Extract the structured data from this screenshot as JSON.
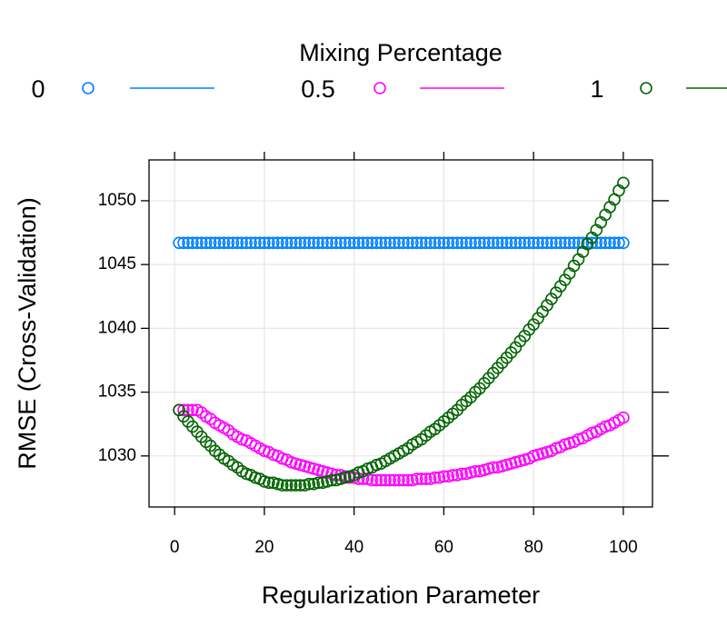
{
  "chart_data": {
    "type": "scatter",
    "legend_title": "Mixing Percentage",
    "xlabel": "Regularization Parameter",
    "ylabel": "RMSE (Cross-Validation)",
    "xlim": [
      -5.7,
      106.5
    ],
    "ylim": [
      1026.0,
      1053.2
    ],
    "xticks": [
      0,
      20,
      40,
      60,
      80,
      100
    ],
    "yticks": [
      1030,
      1035,
      1040,
      1045,
      1050
    ],
    "grid": true,
    "legend": "top",
    "x": [
      1,
      2,
      3,
      4,
      5,
      6,
      7,
      8,
      9,
      10,
      11,
      12,
      13,
      14,
      15,
      16,
      17,
      18,
      19,
      20,
      21,
      22,
      23,
      24,
      25,
      26,
      27,
      28,
      29,
      30,
      31,
      32,
      33,
      34,
      35,
      36,
      37,
      38,
      39,
      40,
      41,
      42,
      43,
      44,
      45,
      46,
      47,
      48,
      49,
      50,
      51,
      52,
      53,
      54,
      55,
      56,
      57,
      58,
      59,
      60,
      61,
      62,
      63,
      64,
      65,
      66,
      67,
      68,
      69,
      70,
      71,
      72,
      73,
      74,
      75,
      76,
      77,
      78,
      79,
      80,
      81,
      82,
      83,
      84,
      85,
      86,
      87,
      88,
      89,
      90,
      91,
      92,
      93,
      94,
      95,
      96,
      97,
      98,
      99,
      100
    ],
    "series": [
      {
        "name": "0",
        "color": "#0080ff",
        "values": [
          1046.7,
          1046.7,
          1046.7,
          1046.7,
          1046.7,
          1046.7,
          1046.7,
          1046.7,
          1046.7,
          1046.7,
          1046.7,
          1046.7,
          1046.7,
          1046.7,
          1046.7,
          1046.7,
          1046.7,
          1046.7,
          1046.7,
          1046.7,
          1046.7,
          1046.7,
          1046.7,
          1046.7,
          1046.7,
          1046.7,
          1046.7,
          1046.7,
          1046.7,
          1046.7,
          1046.7,
          1046.7,
          1046.7,
          1046.7,
          1046.7,
          1046.7,
          1046.7,
          1046.7,
          1046.7,
          1046.7,
          1046.7,
          1046.7,
          1046.7,
          1046.7,
          1046.7,
          1046.7,
          1046.7,
          1046.7,
          1046.7,
          1046.7,
          1046.7,
          1046.7,
          1046.7,
          1046.7,
          1046.7,
          1046.7,
          1046.7,
          1046.7,
          1046.7,
          1046.7,
          1046.7,
          1046.7,
          1046.7,
          1046.7,
          1046.7,
          1046.7,
          1046.7,
          1046.7,
          1046.7,
          1046.7,
          1046.7,
          1046.7,
          1046.7,
          1046.7,
          1046.7,
          1046.7,
          1046.7,
          1046.7,
          1046.7,
          1046.7,
          1046.7,
          1046.7,
          1046.7,
          1046.7,
          1046.7,
          1046.7,
          1046.7,
          1046.7,
          1046.7,
          1046.7,
          1046.7,
          1046.7,
          1046.7,
          1046.7,
          1046.7,
          1046.7,
          1046.7,
          1046.7,
          1046.7,
          1046.7
        ]
      },
      {
        "name": "0.5",
        "color": "#ff00ff",
        "values": [
          1033.6,
          1033.6,
          1033.6,
          1033.6,
          1033.6,
          1033.4,
          1033.1,
          1032.9,
          1032.6,
          1032.4,
          1032.2,
          1032.0,
          1031.7,
          1031.5,
          1031.3,
          1031.2,
          1031.0,
          1030.8,
          1030.6,
          1030.4,
          1030.3,
          1030.1,
          1030.0,
          1029.8,
          1029.7,
          1029.5,
          1029.4,
          1029.3,
          1029.2,
          1029.1,
          1029.0,
          1028.9,
          1028.8,
          1028.7,
          1028.6,
          1028.5,
          1028.5,
          1028.4,
          1028.3,
          1028.3,
          1028.2,
          1028.2,
          1028.2,
          1028.1,
          1028.1,
          1028.1,
          1028.1,
          1028.1,
          1028.1,
          1028.1,
          1028.1,
          1028.1,
          1028.1,
          1028.2,
          1028.2,
          1028.2,
          1028.2,
          1028.3,
          1028.3,
          1028.4,
          1028.4,
          1028.5,
          1028.5,
          1028.6,
          1028.6,
          1028.7,
          1028.8,
          1028.8,
          1028.9,
          1029.0,
          1029.1,
          1029.1,
          1029.2,
          1029.3,
          1029.4,
          1029.5,
          1029.6,
          1029.7,
          1029.8,
          1030.0,
          1030.1,
          1030.2,
          1030.3,
          1030.4,
          1030.6,
          1030.7,
          1030.9,
          1031.0,
          1031.1,
          1031.3,
          1031.4,
          1031.6,
          1031.8,
          1031.9,
          1032.1,
          1032.3,
          1032.4,
          1032.6,
          1032.8,
          1033.0
        ]
      },
      {
        "name": "1",
        "color": "#006400",
        "values": [
          1033.6,
          1033.1,
          1032.7,
          1032.3,
          1031.9,
          1031.5,
          1031.1,
          1030.8,
          1030.4,
          1030.1,
          1029.8,
          1029.6,
          1029.3,
          1029.1,
          1028.8,
          1028.6,
          1028.5,
          1028.3,
          1028.2,
          1028.0,
          1027.9,
          1027.9,
          1027.8,
          1027.7,
          1027.7,
          1027.7,
          1027.7,
          1027.7,
          1027.7,
          1027.8,
          1027.8,
          1027.9,
          1027.9,
          1028.0,
          1028.1,
          1028.1,
          1028.2,
          1028.3,
          1028.4,
          1028.5,
          1028.7,
          1028.8,
          1029.0,
          1029.1,
          1029.3,
          1029.4,
          1029.6,
          1029.8,
          1030.0,
          1030.2,
          1030.4,
          1030.6,
          1030.9,
          1031.1,
          1031.3,
          1031.6,
          1031.9,
          1032.1,
          1032.4,
          1032.7,
          1033.0,
          1033.3,
          1033.6,
          1034.0,
          1034.3,
          1034.6,
          1035.0,
          1035.3,
          1035.7,
          1036.1,
          1036.5,
          1036.9,
          1037.3,
          1037.7,
          1038.1,
          1038.5,
          1039.0,
          1039.4,
          1039.9,
          1040.3,
          1040.8,
          1041.3,
          1041.8,
          1042.3,
          1042.8,
          1043.3,
          1043.8,
          1044.3,
          1044.9,
          1045.4,
          1046.0,
          1046.6,
          1047.1,
          1047.7,
          1048.3,
          1048.9,
          1049.5,
          1050.1,
          1050.8,
          1051.4
        ]
      }
    ]
  }
}
